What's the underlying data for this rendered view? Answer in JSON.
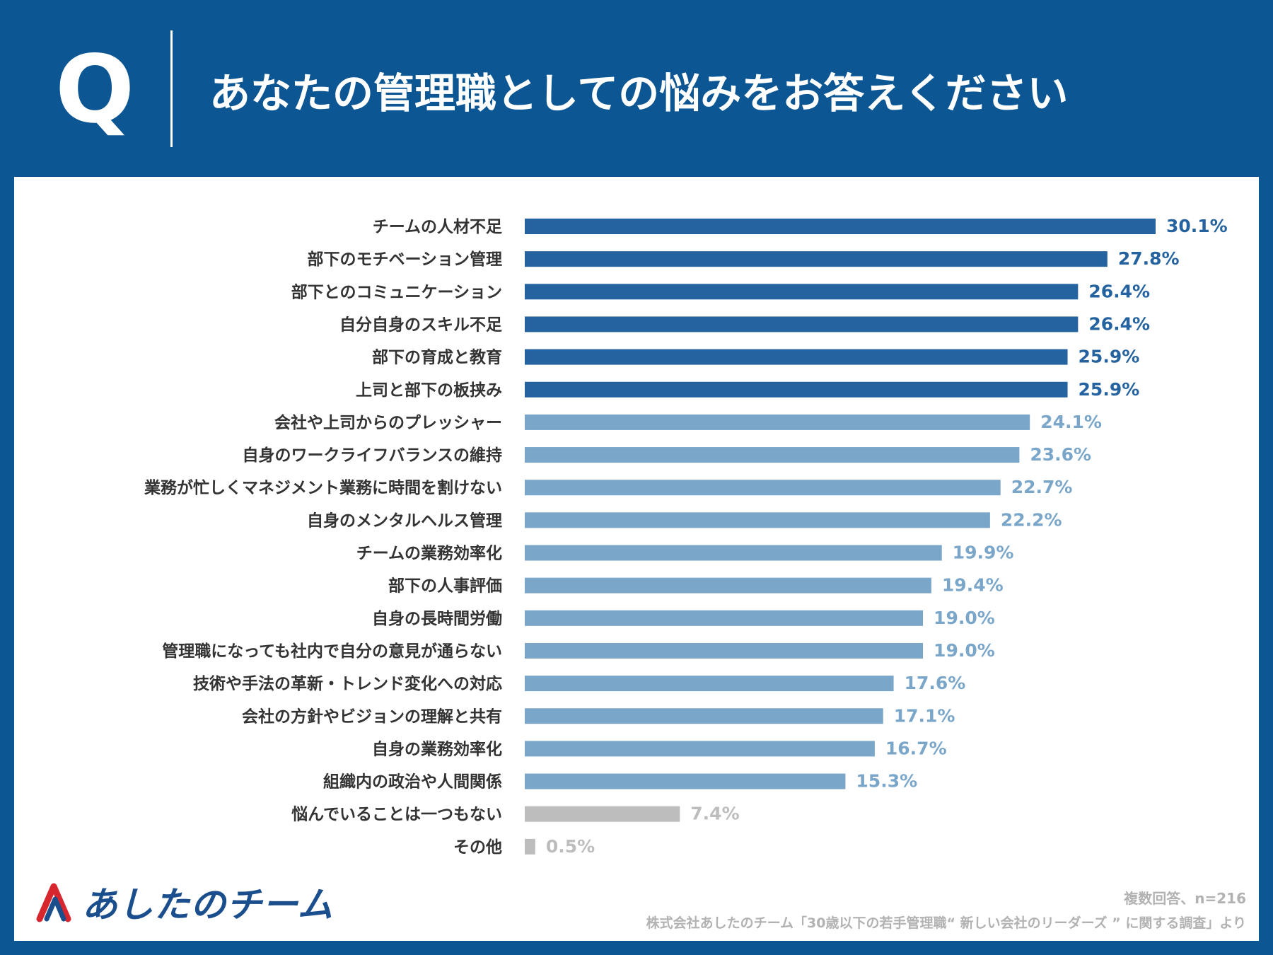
{
  "header": {
    "q_label": "Q",
    "title": "あなたの管理職としての悩みをお答えください"
  },
  "chart_data": {
    "type": "bar",
    "orientation": "horizontal",
    "title": "あなたの管理職としての悩みをお答えください",
    "xlabel": "",
    "ylabel": "",
    "xlim": [
      0,
      30.1
    ],
    "unit": "%",
    "categories": [
      "チームの人材不足",
      "部下のモチベーション管理",
      "部下とのコミュニケーション",
      "自分自身のスキル不足",
      "部下の育成と教育",
      "上司と部下の板挟み",
      "会社や上司からのプレッシャー",
      "自身のワークライフバランスの維持",
      "業務が忙しくマネジメント業務に時間を割けない",
      "自身のメンタルヘルス管理",
      "チームの業務効率化",
      "部下の人事評価",
      "自身の長時間労働",
      "管理職になっても社内で自分の意見が通らない",
      "技術や手法の革新・トレンド変化への対応",
      "会社の方針やビジョンの理解と共有",
      "自身の業務効率化",
      "組織内の政治や人間関係",
      "悩んでいることは一つもない",
      "その他"
    ],
    "values": [
      30.1,
      27.8,
      26.4,
      26.4,
      25.9,
      25.9,
      24.1,
      23.6,
      22.7,
      22.2,
      19.9,
      19.4,
      19.0,
      19.0,
      17.6,
      17.1,
      16.7,
      15.3,
      7.4,
      0.5
    ],
    "value_labels": [
      "30.1%",
      "27.8%",
      "26.4%",
      "26.4%",
      "25.9%",
      "25.9%",
      "24.1%",
      "23.6%",
      "22.7%",
      "22.2%",
      "19.9%",
      "19.4%",
      "19.0%",
      "19.0%",
      "17.6%",
      "17.1%",
      "16.7%",
      "15.3%",
      "7.4%",
      "0.5%"
    ],
    "groups": [
      "top",
      "top",
      "top",
      "top",
      "top",
      "top",
      "mid",
      "mid",
      "mid",
      "mid",
      "mid",
      "mid",
      "mid",
      "mid",
      "mid",
      "mid",
      "mid",
      "mid",
      "none",
      "none"
    ],
    "colors": {
      "top": "#2563a0",
      "mid": "#7aa6c9",
      "none": "#bdbdbd",
      "label": "#333333"
    }
  },
  "footer": {
    "logo_text": "あしたのチーム",
    "note": "複数回答、n=216",
    "source": "株式会社あしたのチーム「30歳以下の若手管理職“ 新しい会社のリーダーズ ” に関する調査」より"
  }
}
